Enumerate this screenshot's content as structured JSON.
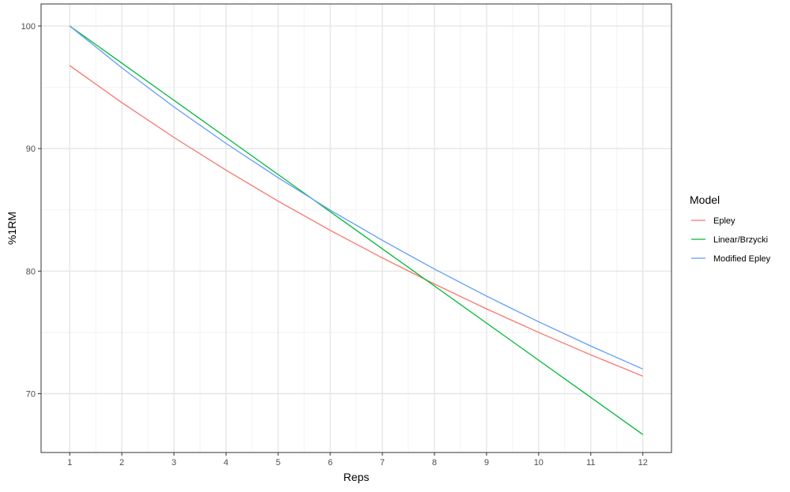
{
  "chart_data": {
    "type": "line",
    "xlabel": "Reps",
    "ylabel": "%1RM",
    "x": [
      1,
      2,
      3,
      4,
      5,
      6,
      7,
      8,
      9,
      10,
      11,
      12
    ],
    "xlim": [
      0.45,
      12.55
    ],
    "ylim": [
      65.2,
      101.8
    ],
    "xticks": [
      1,
      2,
      3,
      4,
      5,
      6,
      7,
      8,
      9,
      10,
      11,
      12
    ],
    "yticks": [
      70,
      80,
      90,
      100
    ],
    "grid": true,
    "legend": {
      "title": "Model",
      "placement": "right"
    },
    "series": [
      {
        "name": "Epley",
        "color": "#F8766D",
        "values": [
          96.77,
          93.75,
          90.91,
          88.24,
          85.71,
          83.33,
          81.08,
          78.95,
          76.92,
          75.0,
          73.17,
          71.43
        ]
      },
      {
        "name": "Linear/Brzycki",
        "color": "#00BA38",
        "values": [
          100,
          96.97,
          93.94,
          90.91,
          87.88,
          84.85,
          81.82,
          78.79,
          75.76,
          72.73,
          69.7,
          66.67
        ]
      },
      {
        "name": "Modified Epley",
        "color": "#619CFF",
        "values": [
          100,
          96.59,
          93.4,
          90.42,
          87.62,
          84.98,
          82.51,
          80.17,
          77.96,
          75.87,
          73.89,
          72.01
        ]
      }
    ]
  }
}
